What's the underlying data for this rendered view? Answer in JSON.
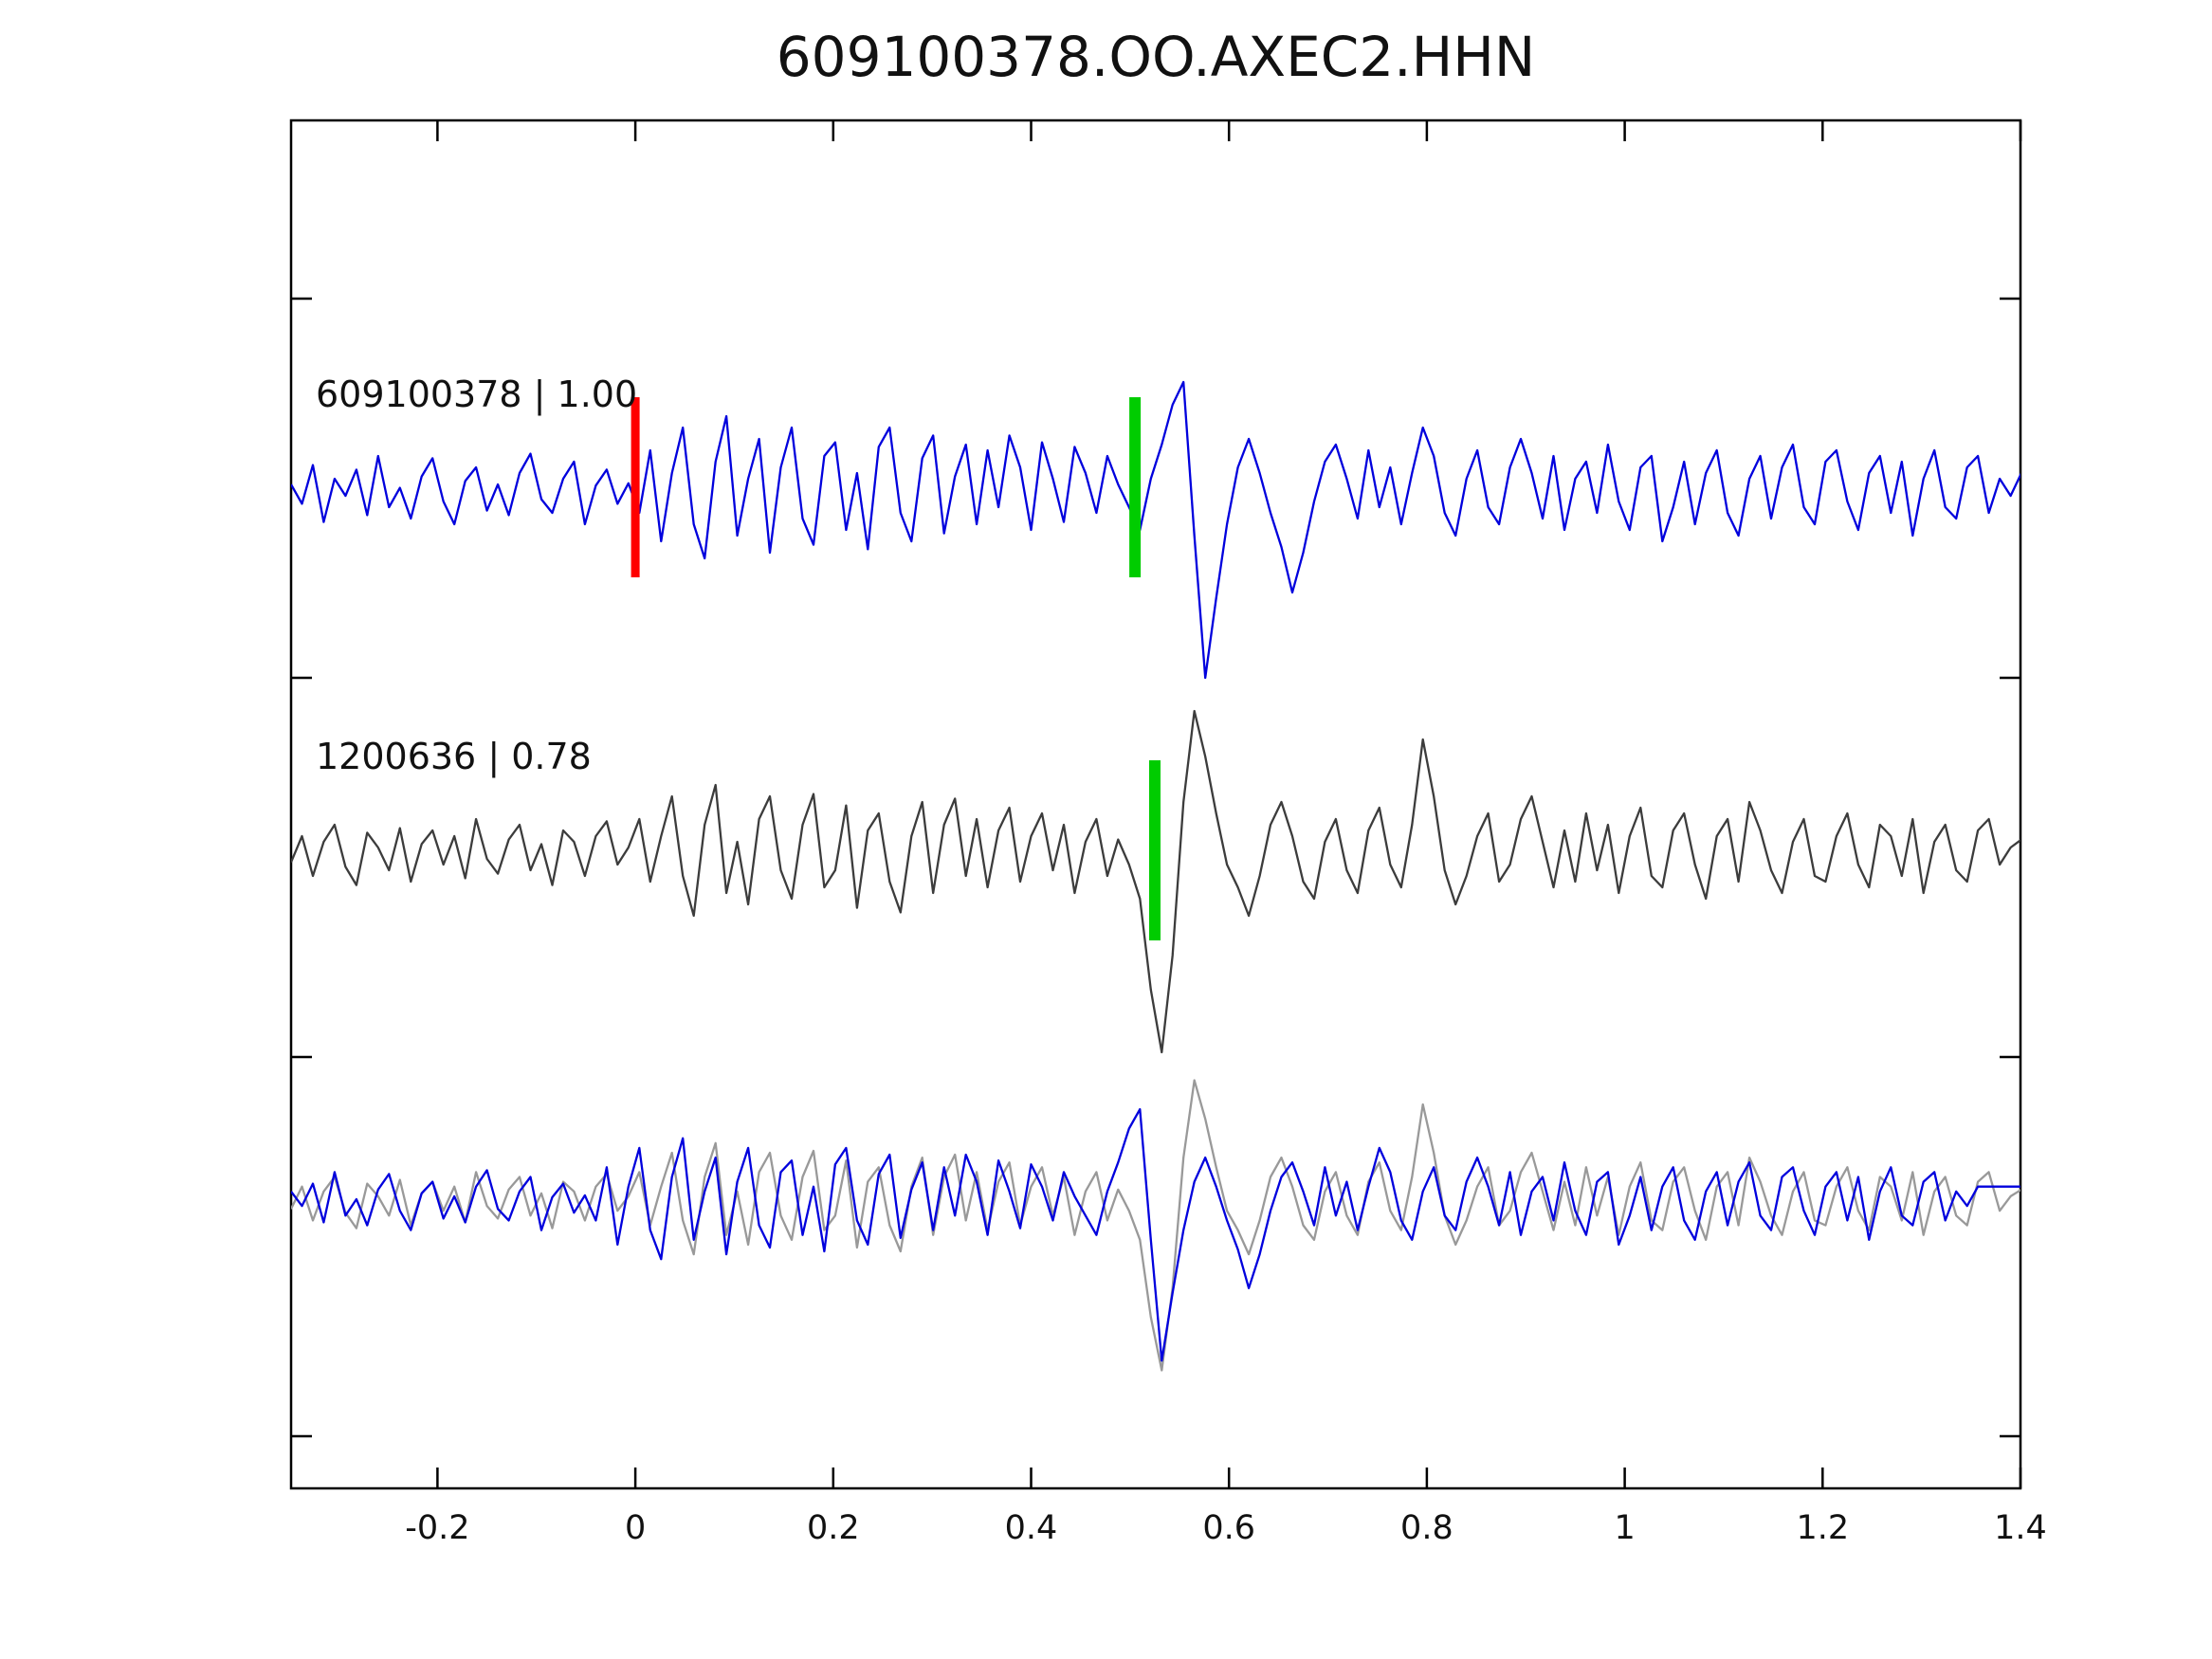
{
  "title": "609100378.OO.AXEC2.HHN",
  "chart_data": {
    "type": "line",
    "title": "609100378.OO.AXEC2.HHN",
    "xlabel": "",
    "ylabel": "",
    "grid": false,
    "legend_position": "none",
    "x_range": [
      -0.348,
      1.4
    ],
    "x_ticks": [
      -0.2,
      0,
      0.2,
      0.4,
      0.6,
      0.8,
      1,
      1.2,
      1.4
    ],
    "x_tick_labels": [
      "-0.2",
      "0",
      "0.2",
      "0.4",
      "0.6",
      "0.8",
      "1",
      "1.2",
      "1.4"
    ],
    "x_start": -0.348,
    "dx": 0.011,
    "traces": [
      {
        "name": "template-trace",
        "id": "609100378",
        "correlation": "1.00",
        "label": "609100378 | 1.00",
        "color": "#0000dd",
        "values": [
          0.05,
          -0.12,
          0.22,
          -0.28,
          0.1,
          -0.05,
          0.18,
          -0.22,
          0.3,
          -0.15,
          0.02,
          -0.25,
          0.12,
          0.28,
          -0.1,
          -0.3,
          0.08,
          0.2,
          -0.18,
          0.05,
          -0.22,
          0.15,
          0.32,
          -0.08,
          -0.2,
          0.1,
          0.25,
          -0.3,
          0.04,
          0.18,
          -0.12,
          0.06,
          -0.2,
          0.35,
          -0.45,
          0.15,
          0.55,
          -0.3,
          -0.6,
          0.25,
          0.65,
          -0.4,
          0.1,
          0.45,
          -0.55,
          0.2,
          0.55,
          -0.25,
          -0.48,
          0.3,
          0.42,
          -0.35,
          0.15,
          -0.52,
          0.38,
          0.55,
          -0.2,
          -0.45,
          0.28,
          0.48,
          -0.38,
          0.12,
          0.4,
          -0.3,
          0.35,
          -0.15,
          0.48,
          0.2,
          -0.35,
          0.42,
          0.1,
          -0.28,
          0.38,
          0.15,
          -0.2,
          0.3,
          0.05,
          -0.15,
          -0.35,
          0.1,
          0.4,
          0.75,
          0.95,
          -0.4,
          -1.65,
          -0.95,
          -0.3,
          0.2,
          0.45,
          0.15,
          -0.2,
          -0.5,
          -0.9,
          -0.55,
          -0.1,
          0.25,
          0.4,
          0.1,
          -0.25,
          0.35,
          -0.15,
          0.2,
          -0.3,
          0.15,
          0.55,
          0.3,
          -0.2,
          -0.4,
          0.1,
          0.35,
          -0.15,
          -0.3,
          0.2,
          0.45,
          0.15,
          -0.25,
          0.3,
          -0.35,
          0.1,
          0.25,
          -0.2,
          0.4,
          -0.1,
          -0.35,
          0.2,
          0.3,
          -0.45,
          -0.15,
          0.25,
          -0.3,
          0.15,
          0.35,
          -0.2,
          -0.4,
          0.1,
          0.3,
          -0.25,
          0.2,
          0.4,
          -0.15,
          -0.3,
          0.25,
          0.35,
          -0.1,
          -0.35,
          0.15,
          0.3,
          -0.2,
          0.25,
          -0.4,
          0.1,
          0.35,
          -0.15,
          -0.25,
          0.2,
          0.3,
          -0.2,
          0.1,
          -0.05,
          0.15
        ]
      },
      {
        "name": "detection-trace",
        "id": "1200636",
        "correlation": "0.78",
        "label": "1200636 | 0.78",
        "color": "#3c3c3c",
        "values": [
          -0.08,
          0.15,
          -0.2,
          0.1,
          0.25,
          -0.12,
          -0.28,
          0.18,
          0.05,
          -0.15,
          0.22,
          -0.25,
          0.08,
          0.2,
          -0.1,
          0.15,
          -0.22,
          0.3,
          -0.05,
          -0.18,
          0.12,
          0.25,
          -0.15,
          0.08,
          -0.28,
          0.2,
          0.1,
          -0.2,
          0.15,
          0.28,
          -0.1,
          0.05,
          0.3,
          -0.25,
          0.15,
          0.5,
          -0.2,
          -0.55,
          0.25,
          0.6,
          -0.35,
          0.1,
          -0.45,
          0.3,
          0.5,
          -0.15,
          -0.4,
          0.25,
          0.52,
          -0.3,
          -0.15,
          0.42,
          -0.48,
          0.2,
          0.35,
          -0.25,
          -0.52,
          0.15,
          0.45,
          -0.35,
          0.25,
          0.48,
          -0.2,
          0.3,
          -0.3,
          0.2,
          0.4,
          -0.25,
          0.15,
          0.35,
          -0.15,
          0.25,
          -0.35,
          0.1,
          0.3,
          -0.2,
          0.12,
          -0.1,
          -0.4,
          -1.2,
          -1.75,
          -0.9,
          0.45,
          1.25,
          0.85,
          0.35,
          -0.1,
          -0.3,
          -0.55,
          -0.2,
          0.25,
          0.45,
          0.15,
          -0.25,
          -0.4,
          0.1,
          0.3,
          -0.15,
          -0.35,
          0.2,
          0.4,
          -0.1,
          -0.3,
          0.25,
          1.0,
          0.5,
          -0.15,
          -0.45,
          -0.2,
          0.15,
          0.35,
          -0.25,
          -0.1,
          0.3,
          0.5,
          0.1,
          -0.3,
          0.2,
          -0.25,
          0.35,
          -0.15,
          0.25,
          -0.35,
          0.15,
          0.4,
          -0.2,
          -0.3,
          0.2,
          0.35,
          -0.1,
          -0.4,
          0.15,
          0.3,
          -0.25,
          0.45,
          0.2,
          -0.15,
          -0.35,
          0.1,
          0.3,
          -0.2,
          -0.25,
          0.15,
          0.35,
          -0.1,
          -0.3,
          0.25,
          0.15,
          -0.2,
          0.3,
          -0.35,
          0.1,
          0.25,
          -0.15,
          -0.25,
          0.2,
          0.3,
          -0.1,
          0.05,
          0.12
        ]
      }
    ],
    "overlay": {
      "name": "aligned-overlay",
      "colors": [
        "#999999",
        "#0000dd"
      ],
      "align_shift_samples": 4,
      "amp_scale": 0.85
    },
    "markers": [
      {
        "name": "origin-pick",
        "trace": 0,
        "x": 0.0,
        "color": "#ff0000"
      },
      {
        "name": "template-pick",
        "trace": 0,
        "x": 0.505,
        "color": "#00cc00"
      },
      {
        "name": "detection-pick",
        "trace": 1,
        "x": 0.525,
        "color": "#00cc00"
      }
    ]
  }
}
